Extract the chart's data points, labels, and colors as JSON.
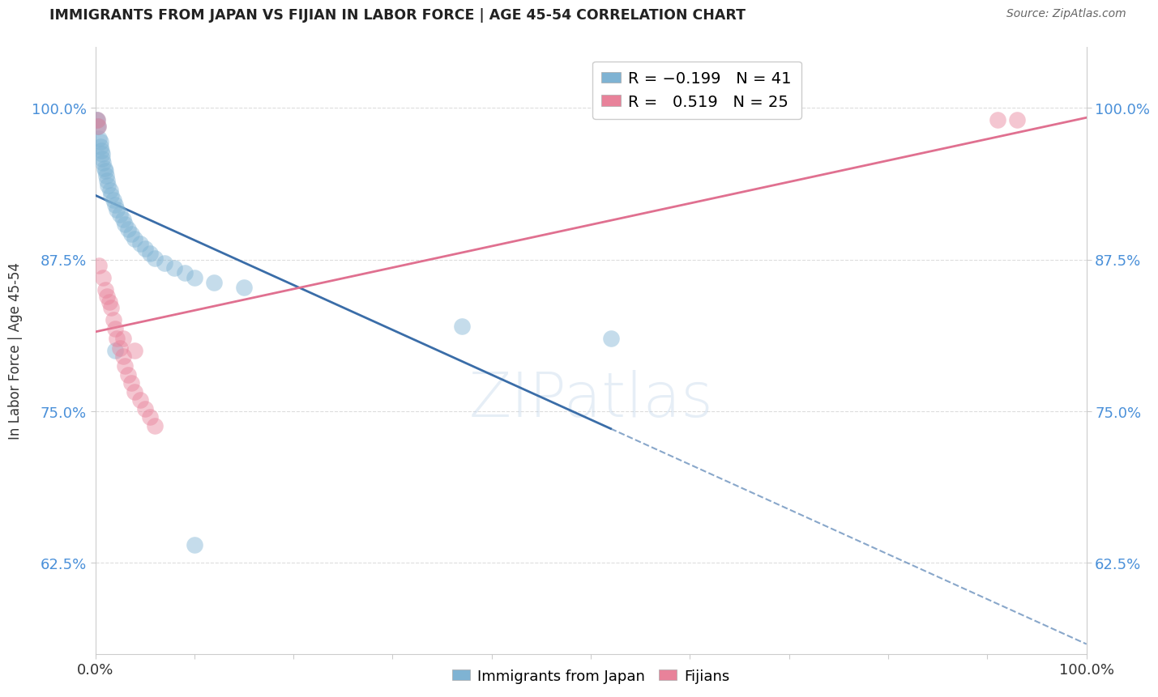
{
  "title": "IMMIGRANTS FROM JAPAN VS FIJIAN IN LABOR FORCE | AGE 45-54 CORRELATION CHART",
  "source": "Source: ZipAtlas.com",
  "ylabel": "In Labor Force | Age 45-54",
  "xlim": [
    0.0,
    1.0
  ],
  "ylim": [
    0.55,
    1.05
  ],
  "ytick_positions": [
    0.625,
    0.75,
    0.875,
    1.0
  ],
  "ytick_labels": [
    "62.5%",
    "75.0%",
    "87.5%",
    "100.0%"
  ],
  "japan_points": [
    [
      0.001,
      0.99
    ],
    [
      0.002,
      0.99
    ],
    [
      0.002,
      0.985
    ],
    [
      0.003,
      0.985
    ],
    [
      0.004,
      0.975
    ],
    [
      0.005,
      0.972
    ],
    [
      0.005,
      0.968
    ],
    [
      0.006,
      0.965
    ],
    [
      0.007,
      0.962
    ],
    [
      0.007,
      0.958
    ],
    [
      0.008,
      0.955
    ],
    [
      0.009,
      0.95
    ],
    [
      0.01,
      0.948
    ],
    [
      0.011,
      0.944
    ],
    [
      0.012,
      0.94
    ],
    [
      0.013,
      0.936
    ],
    [
      0.015,
      0.932
    ],
    [
      0.016,
      0.928
    ],
    [
      0.018,
      0.924
    ],
    [
      0.02,
      0.92
    ],
    [
      0.022,
      0.916
    ],
    [
      0.025,
      0.912
    ],
    [
      0.028,
      0.908
    ],
    [
      0.03,
      0.904
    ],
    [
      0.033,
      0.9
    ],
    [
      0.036,
      0.896
    ],
    [
      0.04,
      0.892
    ],
    [
      0.045,
      0.888
    ],
    [
      0.05,
      0.884
    ],
    [
      0.055,
      0.88
    ],
    [
      0.06,
      0.876
    ],
    [
      0.07,
      0.872
    ],
    [
      0.08,
      0.868
    ],
    [
      0.09,
      0.864
    ],
    [
      0.1,
      0.86
    ],
    [
      0.12,
      0.856
    ],
    [
      0.15,
      0.852
    ],
    [
      0.02,
      0.8
    ],
    [
      0.37,
      0.82
    ],
    [
      0.52,
      0.81
    ],
    [
      0.1,
      0.64
    ]
  ],
  "fijian_points": [
    [
      0.002,
      0.99
    ],
    [
      0.003,
      0.985
    ],
    [
      0.004,
      0.87
    ],
    [
      0.008,
      0.86
    ],
    [
      0.01,
      0.85
    ],
    [
      0.012,
      0.845
    ],
    [
      0.014,
      0.84
    ],
    [
      0.016,
      0.835
    ],
    [
      0.018,
      0.825
    ],
    [
      0.02,
      0.818
    ],
    [
      0.022,
      0.81
    ],
    [
      0.025,
      0.802
    ],
    [
      0.028,
      0.795
    ],
    [
      0.03,
      0.787
    ],
    [
      0.033,
      0.78
    ],
    [
      0.036,
      0.773
    ],
    [
      0.04,
      0.766
    ],
    [
      0.045,
      0.759
    ],
    [
      0.05,
      0.752
    ],
    [
      0.055,
      0.745
    ],
    [
      0.06,
      0.738
    ],
    [
      0.028,
      0.81
    ],
    [
      0.04,
      0.8
    ],
    [
      0.91,
      0.99
    ],
    [
      0.93,
      0.99
    ]
  ],
  "japan_color": "#7fb3d3",
  "fijian_color": "#e8829a",
  "japan_line_color": "#3a6da8",
  "fijian_line_color": "#e07090",
  "background_color": "#ffffff",
  "grid_color": "#dddddd",
  "watermark": "ZIPatlas",
  "watermark_color": "#b8cfe8"
}
